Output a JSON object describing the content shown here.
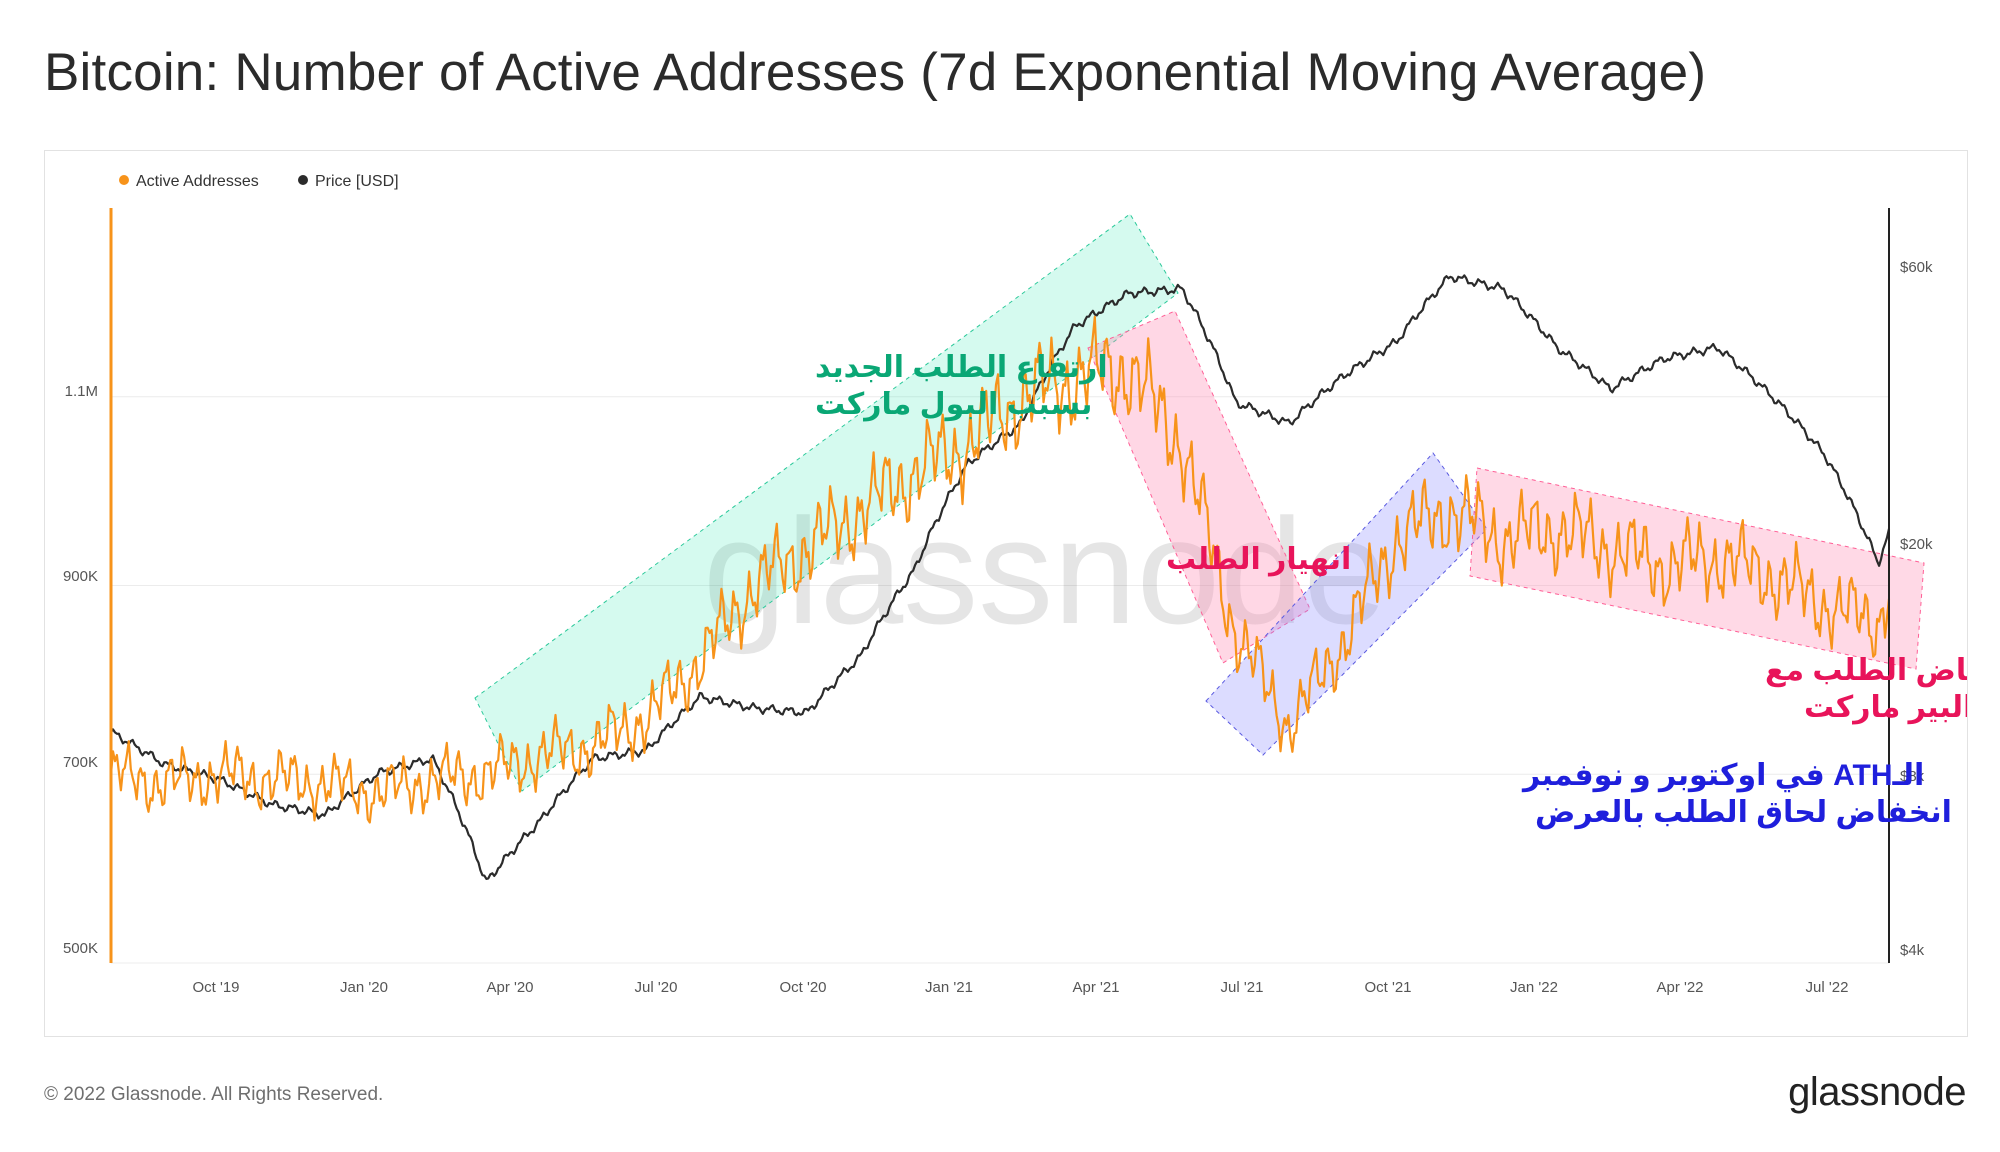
{
  "title": "Bitcoin: Number of Active Addresses (7d Exponential Moving Average)",
  "footer": {
    "copyright": "© 2022 Glassnode. All Rights Reserved.",
    "brand": "glassnode"
  },
  "colors": {
    "active": "#f7931a",
    "price": "#2b2b2b",
    "green": "#2ee6b0",
    "pink": "#ff8cb4",
    "blue": "#8c8cff"
  },
  "chart_data": {
    "type": "line",
    "title": "Bitcoin: Number of Active Addresses (7d Exponential Moving Average)",
    "watermark": "glassnode",
    "legend": [
      {
        "name": "Active Addresses",
        "color": "#f7931a"
      },
      {
        "name": "Price [USD]",
        "color": "#2b2b2b"
      }
    ],
    "x_ticks": [
      "Oct '19",
      "Jan '20",
      "Apr '20",
      "Jul '20",
      "Oct '20",
      "Jan '21",
      "Apr '21",
      "Jul '21",
      "Oct '21",
      "Jan '22",
      "Apr '22",
      "Jul '22"
    ],
    "x_range_months": [
      0,
      33.2
    ],
    "x_tick_months": [
      1,
      4,
      7,
      10,
      13,
      16,
      19,
      22,
      25,
      28,
      31,
      34
    ],
    "left_axis": {
      "label": "Active Addresses",
      "range": [
        500000,
        1300000
      ],
      "ticks": [
        500000,
        700000,
        900000,
        1100000
      ],
      "tick_labels": [
        "500K",
        "700K",
        "900K",
        "1.1M"
      ]
    },
    "right_axis": {
      "label": "Price [USD]",
      "scale": "log",
      "range": [
        4000,
        80000
      ],
      "ticks": [
        4000,
        8000,
        20000,
        60000
      ],
      "tick_labels": [
        "$4k",
        "$8k",
        "$20k",
        "$60k"
      ]
    },
    "series": [
      {
        "name": "Active Addresses",
        "axis": "left",
        "months": [
          0,
          1,
          2,
          3,
          4,
          5,
          6,
          7,
          8,
          9,
          10,
          11,
          12,
          13,
          14,
          15,
          16,
          17,
          18,
          19,
          20,
          21,
          22,
          23,
          24,
          25,
          26,
          27,
          28,
          29,
          30,
          31,
          32,
          33,
          33.2
        ],
        "values": [
          700000,
          690000,
          700000,
          695000,
          690000,
          680000,
          695000,
          700000,
          720000,
          730000,
          760000,
          820000,
          900000,
          940000,
          980000,
          1020000,
          1050000,
          1100000,
          1120000,
          1130000,
          1050000,
          850000,
          750000,
          840000,
          950000,
          980000,
          950000,
          960000,
          940000,
          920000,
          930000,
          910000,
          880000,
          860000,
          900000
        ]
      },
      {
        "name": "Price [USD]",
        "axis": "right",
        "months": [
          0,
          1,
          2,
          3,
          4,
          5,
          6,
          7,
          8,
          9,
          10,
          11,
          12,
          13,
          14,
          15,
          16,
          17,
          18,
          19,
          20,
          21,
          22,
          23,
          24,
          25,
          26,
          27,
          28,
          29,
          30,
          31,
          32,
          33,
          33.2
        ],
        "values": [
          10000,
          8800,
          8300,
          7500,
          7200,
          8500,
          9000,
          5500,
          7000,
          9000,
          9300,
          11500,
          11000,
          10800,
          13500,
          19000,
          29000,
          34000,
          50000,
          57000,
          58000,
          37000,
          34000,
          41000,
          47000,
          61000,
          58000,
          46000,
          39000,
          44000,
          46000,
          38000,
          30000,
          19500,
          22000
        ]
      }
    ],
    "annotations": [
      {
        "id": "bull",
        "color": "#0aa775",
        "lines": [
          "ارتفاع الطلب الجديد",
          "بسبب البول ماركت"
        ]
      },
      {
        "id": "crash",
        "color": "#e8145a",
        "lines": [
          "انهيار الطلب"
        ]
      },
      {
        "id": "ath",
        "color": "#1f1fdc",
        "lines": [
          "الـATH في اوكتوبر و نوفمبر",
          "انخفاض لحاق الطلب بالعرض"
        ]
      },
      {
        "id": "bear",
        "color": "#e8145a",
        "lines": [
          "انخفاض الطلب مع",
          "استمرار البير ماركت"
        ]
      }
    ]
  }
}
